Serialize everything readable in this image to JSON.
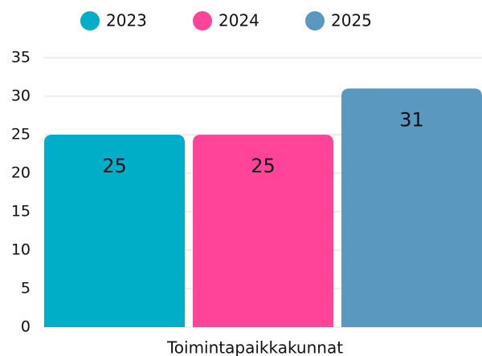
{
  "chart_data": {
    "type": "bar",
    "categories": [
      "Toimintapaikkakunnat"
    ],
    "series": [
      {
        "name": "2023",
        "color": "#00aec8",
        "values": [
          25
        ]
      },
      {
        "name": "2024",
        "color": "#ff4499",
        "values": [
          25
        ]
      },
      {
        "name": "2025",
        "color": "#5b98bf",
        "values": [
          31
        ]
      }
    ],
    "ylim": [
      0,
      35
    ],
    "yticks": [
      0,
      5,
      10,
      15,
      20,
      25,
      30,
      35
    ],
    "grid": true,
    "legend": "top"
  }
}
